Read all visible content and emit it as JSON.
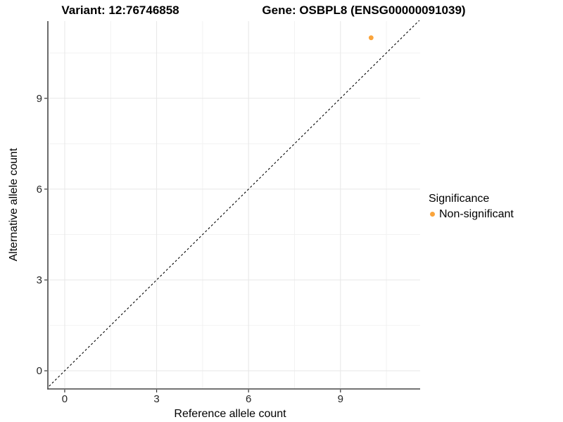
{
  "chart_data": {
    "type": "scatter",
    "variant_title": "Variant: 12:76746858",
    "gene_title": "Gene: OSBPL8 (ENSG00000091039)",
    "xlabel": "Reference allele count",
    "ylabel": "Alternative allele count",
    "xlim": [
      -0.55,
      11.6
    ],
    "ylim": [
      -0.6,
      11.55
    ],
    "xticks": [
      0,
      3,
      6,
      9
    ],
    "yticks": [
      0,
      3,
      6,
      9
    ],
    "xminor": [
      1.5,
      4.5,
      7.5,
      10.5
    ],
    "yminor": [
      1.5,
      4.5,
      7.5,
      10.5
    ],
    "grid": "major and minor, light gray on white",
    "legend_position": "right",
    "series": [
      {
        "name": "Non-significant",
        "color": "#FAA43B",
        "points": [
          {
            "x": 10,
            "y": 11
          }
        ]
      }
    ],
    "reference_line": {
      "style": "dashed",
      "slope": 1,
      "intercept": 0,
      "color": "#000000"
    }
  },
  "legend": {
    "title": "Significance",
    "items": [
      {
        "label": "Non-significant",
        "color": "#FAA43B"
      }
    ]
  },
  "style": {
    "background": "#FFFFFF",
    "point_color": "#FAA43B",
    "grid_major_color": "#E7E7E7",
    "grid_minor_color": "#F2F2F2",
    "axis_line_color": "#474747",
    "tick_mark_color": "#333333",
    "tick_label_color": "#262626"
  }
}
